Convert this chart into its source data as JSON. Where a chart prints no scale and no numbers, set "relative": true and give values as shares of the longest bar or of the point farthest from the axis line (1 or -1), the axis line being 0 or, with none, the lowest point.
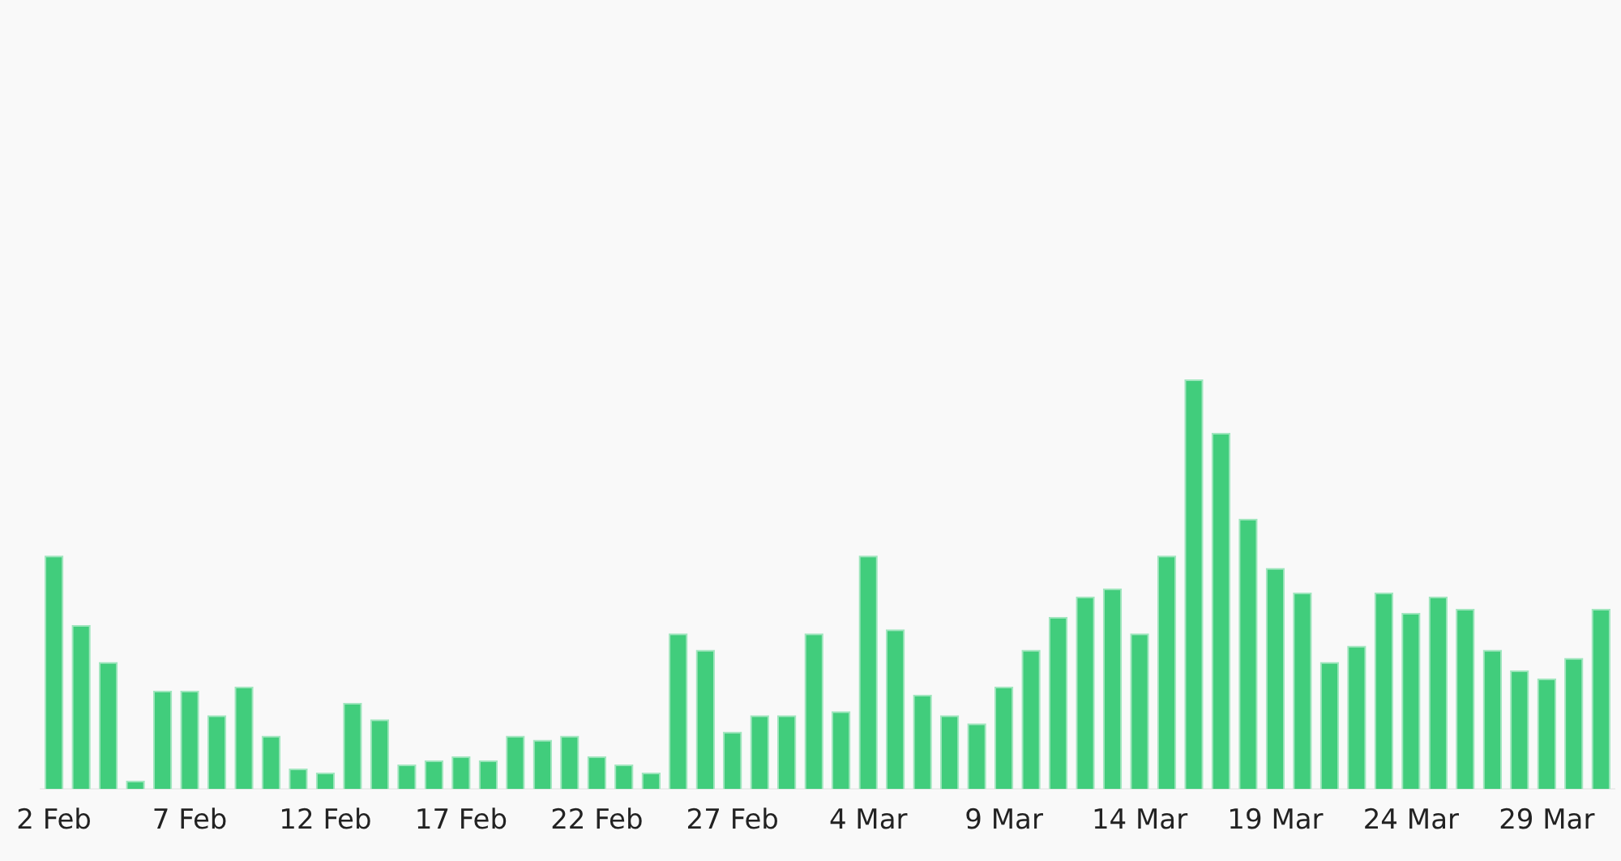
{
  "chart_data": {
    "type": "bar",
    "categories": [
      "2 Feb",
      null,
      null,
      null,
      null,
      "7 Feb",
      null,
      null,
      null,
      null,
      "12 Feb",
      null,
      null,
      null,
      null,
      "17 Feb",
      null,
      null,
      null,
      null,
      "22 Feb",
      null,
      null,
      null,
      null,
      "27 Feb",
      null,
      null,
      null,
      null,
      "4 Mar",
      null,
      null,
      null,
      null,
      "9 Mar",
      null,
      null,
      null,
      null,
      "14 Mar",
      null,
      null,
      null,
      null,
      "19 Mar",
      null,
      null,
      null,
      null,
      "24 Mar",
      null,
      null,
      null,
      null,
      "29 Mar",
      null,
      null
    ],
    "values": [
      0.57,
      0.4,
      0.31,
      0.02,
      0.24,
      0.24,
      0.18,
      0.25,
      0.13,
      0.05,
      0.04,
      0.21,
      0.17,
      0.06,
      0.07,
      0.08,
      0.07,
      0.13,
      0.12,
      0.13,
      0.08,
      0.06,
      0.04,
      0.38,
      0.34,
      0.14,
      0.18,
      0.18,
      0.38,
      0.19,
      0.57,
      0.39,
      0.23,
      0.18,
      0.16,
      0.25,
      0.34,
      0.42,
      0.47,
      0.49,
      0.38,
      0.57,
      1,
      0.87,
      0.66,
      0.54,
      0.48,
      0.31,
      0.35,
      0.48,
      0.43,
      0.47,
      0.44,
      0.34,
      0.29,
      0.27,
      0.32,
      0.44
    ],
    "color": "#41cd7c",
    "relative": true
  }
}
